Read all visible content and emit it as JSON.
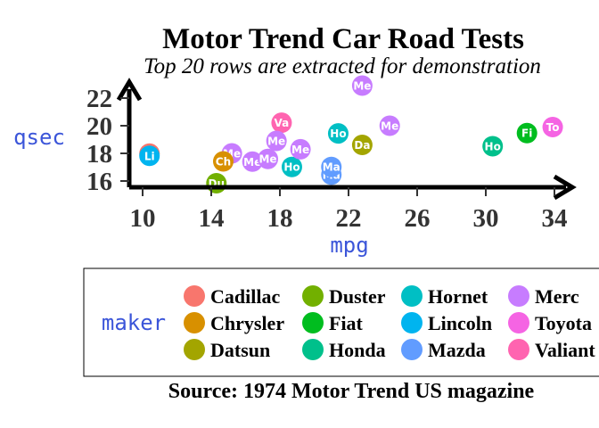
{
  "chart_data": {
    "type": "scatter",
    "title": "Motor Trend Car Road Tests",
    "subtitle": "Top 20 rows are extracted for demonstration",
    "caption": "Source: 1974 Motor Trend US magazine",
    "xlabel": "mpg",
    "ylabel": "qsec",
    "xlim": [
      9,
      35
    ],
    "ylim": [
      15.3,
      23.5
    ],
    "x_ticks": [
      10,
      14,
      18,
      22,
      26,
      30,
      34
    ],
    "y_ticks": [
      16,
      18,
      20,
      22
    ],
    "grid": false,
    "legend": {
      "title": "maker",
      "placement": "bottom",
      "entries": [
        {
          "name": "Cadillac",
          "color": "#F8766D"
        },
        {
          "name": "Chrysler",
          "color": "#D89000"
        },
        {
          "name": "Datsun",
          "color": "#A3A500"
        },
        {
          "name": "Duster",
          "color": "#72B000"
        },
        {
          "name": "Fiat",
          "color": "#00BD1F"
        },
        {
          "name": "Honda",
          "color": "#00C08B"
        },
        {
          "name": "Hornet",
          "color": "#00BFC4"
        },
        {
          "name": "Lincoln",
          "color": "#00B4EF"
        },
        {
          "name": "Mazda",
          "color": "#619CFF"
        },
        {
          "name": "Merc",
          "color": "#C77CFF"
        },
        {
          "name": "Toyota",
          "color": "#F564E3"
        },
        {
          "name": "Valiant",
          "color": "#FF64B0"
        }
      ]
    },
    "points": [
      {
        "maker": "Mazda",
        "label": "Ma",
        "x": 21.0,
        "y": 16.46
      },
      {
        "maker": "Mazda",
        "label": "Ma",
        "x": 21.0,
        "y": 17.02
      },
      {
        "maker": "Datsun",
        "label": "Da",
        "x": 22.8,
        "y": 18.61
      },
      {
        "maker": "Hornet",
        "label": "Ho",
        "x": 21.4,
        "y": 19.44
      },
      {
        "maker": "Hornet",
        "label": "Ho",
        "x": 18.7,
        "y": 17.02
      },
      {
        "maker": "Valiant",
        "label": "Va",
        "x": 18.1,
        "y": 20.22
      },
      {
        "maker": "Duster",
        "label": "Du",
        "x": 14.3,
        "y": 15.84
      },
      {
        "maker": "Merc",
        "label": "Me",
        "x": 24.4,
        "y": 20.0
      },
      {
        "maker": "Merc",
        "label": "Me",
        "x": 22.8,
        "y": 22.9
      },
      {
        "maker": "Merc",
        "label": "Me",
        "x": 19.2,
        "y": 18.3
      },
      {
        "maker": "Merc",
        "label": "Me",
        "x": 17.8,
        "y": 18.9
      },
      {
        "maker": "Merc",
        "label": "Me",
        "x": 16.4,
        "y": 17.4
      },
      {
        "maker": "Merc",
        "label": "Me",
        "x": 17.3,
        "y": 17.6
      },
      {
        "maker": "Merc",
        "label": "Me",
        "x": 15.2,
        "y": 18.0
      },
      {
        "maker": "Cadillac",
        "label": "Ca",
        "x": 10.4,
        "y": 17.98
      },
      {
        "maker": "Lincoln",
        "label": "Li",
        "x": 10.4,
        "y": 17.82
      },
      {
        "maker": "Chrysler",
        "label": "Ch",
        "x": 14.7,
        "y": 17.42
      },
      {
        "maker": "Fiat",
        "label": "Fi",
        "x": 32.4,
        "y": 19.47
      },
      {
        "maker": "Honda",
        "label": "Ho",
        "x": 30.4,
        "y": 18.52
      },
      {
        "maker": "Toyota",
        "label": "To",
        "x": 33.9,
        "y": 19.9
      }
    ]
  }
}
